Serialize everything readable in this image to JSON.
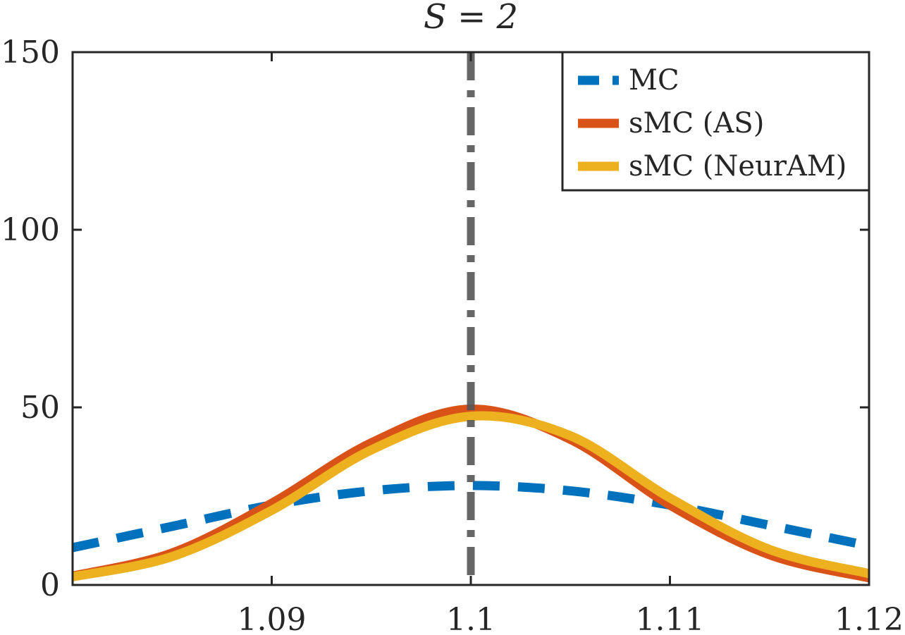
{
  "chart_data": {
    "type": "line",
    "title": "S = 2",
    "xlabel": "",
    "ylabel": "",
    "xlim": [
      1.08,
      1.12
    ],
    "ylim": [
      0,
      150
    ],
    "xticks": [
      1.09,
      1.1,
      1.11,
      1.12
    ],
    "xtick_labels": [
      "1.09",
      "1.1",
      "1.11",
      "1.12"
    ],
    "yticks": [
      0,
      50,
      100,
      150
    ],
    "ytick_labels": [
      "0",
      "50",
      "100",
      "150"
    ],
    "grid": false,
    "legend_position": "top-right",
    "reference_line": {
      "x": 1.1,
      "style": "dash-dot",
      "color": "#555555"
    },
    "series": [
      {
        "name": "MC",
        "style": "dashed",
        "color": "#0072BD",
        "x": [
          1.08,
          1.085,
          1.09,
          1.095,
          1.1,
          1.105,
          1.11,
          1.115,
          1.12
        ],
        "y": [
          10.5,
          16.5,
          22.5,
          26.5,
          28.0,
          26.5,
          22.5,
          16.8,
          11.0
        ]
      },
      {
        "name": "sMC (AS)",
        "style": "solid",
        "color": "#D95319",
        "x": [
          1.08,
          1.085,
          1.09,
          1.095,
          1.1,
          1.105,
          1.11,
          1.115,
          1.12
        ],
        "y": [
          2.5,
          9.0,
          23.0,
          40.0,
          49.5,
          41.0,
          22.5,
          8.5,
          2.0
        ]
      },
      {
        "name": "sMC (NeurAM)",
        "style": "solid",
        "color": "#EDB120",
        "x": [
          1.08,
          1.085,
          1.09,
          1.095,
          1.1,
          1.105,
          1.11,
          1.115,
          1.12
        ],
        "y": [
          2.3,
          8.0,
          21.0,
          38.0,
          47.5,
          42.0,
          24.5,
          10.0,
          3.2
        ]
      }
    ]
  }
}
